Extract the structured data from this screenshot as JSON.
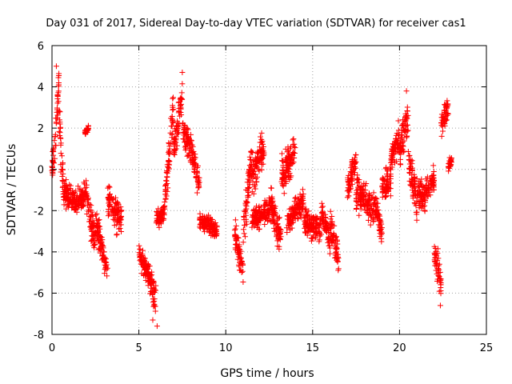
{
  "chart_data": {
    "type": "scatter",
    "title": "Day 031 of 2017, Sidereal Day-to-day VTEC variation (SDTVAR) for receiver cas1",
    "xlabel": "GPS time / hours",
    "ylabel": "SDTVAR / TECUs",
    "xlim": [
      0,
      25
    ],
    "ylim": [
      -8,
      6
    ],
    "x_ticks": [
      "0",
      "5",
      "10",
      "15",
      "20",
      "25"
    ],
    "y_ticks": [
      "-8",
      "-6",
      "-4",
      "-2",
      "0",
      "2",
      "4",
      "6"
    ],
    "grid": true,
    "marker": "+",
    "colors": {
      "series": "#ff0000",
      "grid": "#a0a0a0",
      "axis": "#000000"
    },
    "series": [
      {
        "name": "cas1",
        "segments": [
          {
            "x": [
              0.0,
              0.2
            ],
            "y": [
              0.0,
              1.5
            ],
            "spread": 1.5
          },
          {
            "x": [
              0.2,
              0.4
            ],
            "y": [
              1.5,
              4.0
            ],
            "spread": 1.3
          },
          {
            "x": [
              0.4,
              0.7
            ],
            "y": [
              2.5,
              -1.5
            ],
            "spread": 1.5
          },
          {
            "x": [
              0.7,
              1.5
            ],
            "y": [
              -1.0,
              -1.8
            ],
            "spread": 1.0
          },
          {
            "x": [
              1.5,
              2.0
            ],
            "y": [
              -1.5,
              -1.2
            ],
            "spread": 1.0
          },
          {
            "x": [
              1.9,
              2.1
            ],
            "y": [
              1.8,
              2.0
            ],
            "spread": 0.3
          },
          {
            "x": [
              2.0,
              2.5
            ],
            "y": [
              -1.5,
              -3.5
            ],
            "spread": 1.5
          },
          {
            "x": [
              2.5,
              3.2
            ],
            "y": [
              -2.5,
              -5.0
            ],
            "spread": 1.2
          },
          {
            "x": [
              3.2,
              4.0
            ],
            "y": [
              -1.5,
              -2.5
            ],
            "spread": 1.3
          },
          {
            "x": [
              5.0,
              5.5
            ],
            "y": [
              -4.0,
              -5.0
            ],
            "spread": 1.0
          },
          {
            "x": [
              5.5,
              6.0
            ],
            "y": [
              -5.0,
              -6.5
            ],
            "spread": 1.3
          },
          {
            "x": [
              6.0,
              6.5
            ],
            "y": [
              -2.5,
              -2.0
            ],
            "spread": 0.8
          },
          {
            "x": [
              6.5,
              7.0
            ],
            "y": [
              -1.5,
              3.0
            ],
            "spread": 1.5
          },
          {
            "x": [
              7.0,
              7.5
            ],
            "y": [
              1.0,
              3.5
            ],
            "spread": 1.2
          },
          {
            "x": [
              7.5,
              8.0
            ],
            "y": [
              2.0,
              1.0
            ],
            "spread": 1.2
          },
          {
            "x": [
              8.0,
              8.5
            ],
            "y": [
              1.0,
              -1.0
            ],
            "spread": 1.0
          },
          {
            "x": [
              8.5,
              9.5
            ],
            "y": [
              -2.5,
              -3.0
            ],
            "spread": 0.8
          },
          {
            "x": [
              10.5,
              11.0
            ],
            "y": [
              -3.0,
              -5.0
            ],
            "spread": 1.2
          },
          {
            "x": [
              11.0,
              11.5
            ],
            "y": [
              -3.0,
              0.5
            ],
            "spread": 1.5
          },
          {
            "x": [
              11.5,
              12.2
            ],
            "y": [
              -0.5,
              1.0
            ],
            "spread": 1.5
          },
          {
            "x": [
              11.5,
              12.5
            ],
            "y": [
              -2.5,
              -2.0
            ],
            "spread": 1.0
          },
          {
            "x": [
              12.5,
              13.2
            ],
            "y": [
              -1.5,
              -3.5
            ],
            "spread": 1.3
          },
          {
            "x": [
              13.2,
              14.0
            ],
            "y": [
              -0.5,
              1.0
            ],
            "spread": 1.5
          },
          {
            "x": [
              13.5,
              14.5
            ],
            "y": [
              -2.5,
              -1.5
            ],
            "spread": 1.0
          },
          {
            "x": [
              14.5,
              15.5
            ],
            "y": [
              -2.5,
              -3.0
            ],
            "spread": 1.0
          },
          {
            "x": [
              15.5,
              16.0
            ],
            "y": [
              -2.0,
              -3.5
            ],
            "spread": 1.2
          },
          {
            "x": [
              16.0,
              16.5
            ],
            "y": [
              -2.5,
              -4.5
            ],
            "spread": 1.2
          },
          {
            "x": [
              17.0,
              17.5
            ],
            "y": [
              -1.0,
              0.5
            ],
            "spread": 1.0
          },
          {
            "x": [
              17.5,
              18.5
            ],
            "y": [
              -1.0,
              -2.0
            ],
            "spread": 1.2
          },
          {
            "x": [
              18.5,
              19.0
            ],
            "y": [
              -1.5,
              -3.0
            ],
            "spread": 1.0
          },
          {
            "x": [
              19.0,
              19.5
            ],
            "y": [
              -1.0,
              -0.5
            ],
            "spread": 1.2
          },
          {
            "x": [
              19.5,
              20.0
            ],
            "y": [
              0.5,
              1.5
            ],
            "spread": 1.2
          },
          {
            "x": [
              20.0,
              20.5
            ],
            "y": [
              1.0,
              2.5
            ],
            "spread": 1.5
          },
          {
            "x": [
              20.5,
              21.0
            ],
            "y": [
              0.5,
              -1.5
            ],
            "spread": 1.5
          },
          {
            "x": [
              21.0,
              21.5
            ],
            "y": [
              -1.0,
              -1.5
            ],
            "spread": 1.2
          },
          {
            "x": [
              21.5,
              22.0
            ],
            "y": [
              -1.0,
              -0.5
            ],
            "spread": 1.0
          },
          {
            "x": [
              22.0,
              22.4
            ],
            "y": [
              -4.0,
              -5.5
            ],
            "spread": 1.3
          },
          {
            "x": [
              22.4,
              22.8
            ],
            "y": [
              2.0,
              3.0
            ],
            "spread": 1.0
          },
          {
            "x": [
              22.8,
              23.0
            ],
            "y": [
              0.0,
              0.5
            ],
            "spread": 0.5
          }
        ],
        "extremes": [
          {
            "x": 0.25,
            "y": 5.0
          },
          {
            "x": 6.05,
            "y": -7.6
          },
          {
            "x": 5.8,
            "y": -7.3
          },
          {
            "x": 20.4,
            "y": 3.8
          },
          {
            "x": 22.35,
            "y": -6.6
          },
          {
            "x": 7.5,
            "y": 4.7
          }
        ]
      }
    ]
  }
}
